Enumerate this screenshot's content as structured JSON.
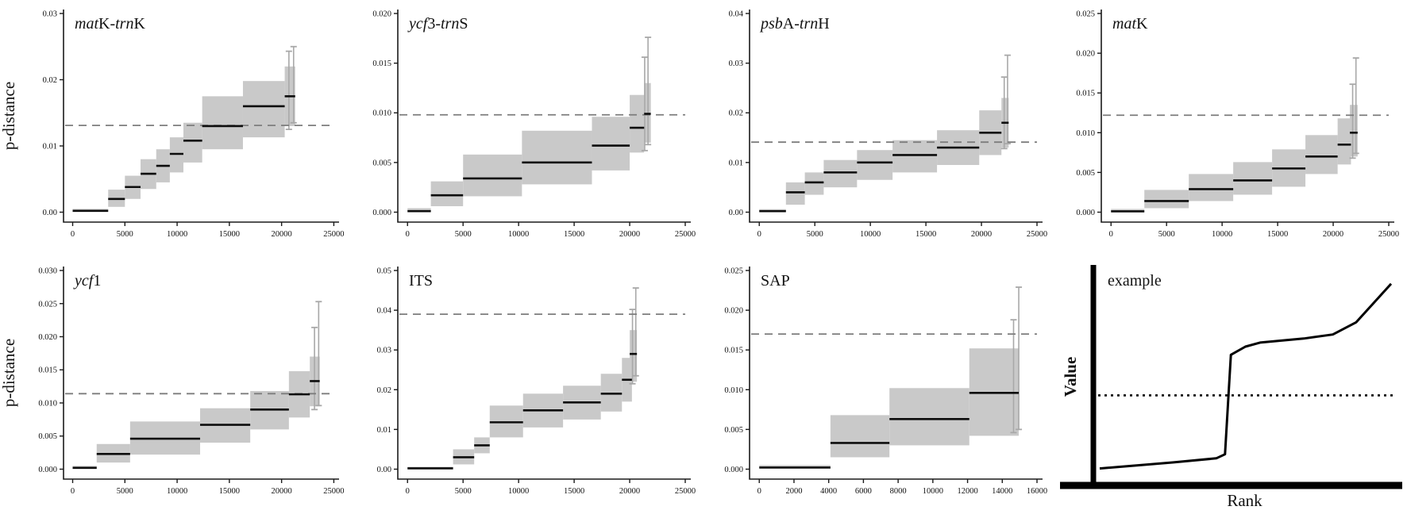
{
  "figure": {
    "ylabel": "p-distance",
    "colors": {
      "box": "#c9c9c9",
      "whisker": "#a8a8a8",
      "median": "#0d0d0d",
      "threshold": "#7d7d7d",
      "axis": "#1a1a1a"
    }
  },
  "chart_data": [
    {
      "type": "step-box",
      "title_parts": [
        [
          "mat",
          true
        ],
        [
          "K-",
          false
        ],
        [
          "trn",
          true
        ],
        [
          "K",
          false
        ]
      ],
      "ylabel": "p-distance",
      "xlim": [
        0,
        25000
      ],
      "xticks": [
        0,
        5000,
        10000,
        15000,
        20000,
        25000
      ],
      "ylim": [
        0,
        0.03
      ],
      "yticks": [
        0,
        0.01,
        0.02,
        0.03
      ],
      "ydecimals": 2,
      "threshold_y": 0.0131,
      "steps": [
        [
          0,
          3400,
          0.0002,
          0.0001,
          0.0005
        ],
        [
          3400,
          5000,
          0.002,
          0.0008,
          0.0034
        ],
        [
          5000,
          6500,
          0.0038,
          0.002,
          0.0055
        ],
        [
          6500,
          8000,
          0.0058,
          0.0035,
          0.008
        ],
        [
          8000,
          9300,
          0.007,
          0.0045,
          0.0095
        ],
        [
          9300,
          10600,
          0.0088,
          0.006,
          0.0113
        ],
        [
          10600,
          12400,
          0.0108,
          0.0075,
          0.0135
        ],
        [
          12400,
          16300,
          0.013,
          0.0095,
          0.0175
        ],
        [
          16300,
          20300,
          0.016,
          0.0113,
          0.0198
        ],
        [
          20300,
          21300,
          0.0175,
          0.013,
          0.022
        ]
      ],
      "whiskers": [
        [
          20700,
          0.0125,
          0.0243
        ],
        [
          21150,
          0.0135,
          0.025
        ]
      ]
    },
    {
      "type": "step-box",
      "title_parts": [
        [
          "ycf",
          true
        ],
        [
          "3-",
          false
        ],
        [
          "trn",
          true
        ],
        [
          "S",
          false
        ]
      ],
      "xlim": [
        0,
        25000
      ],
      "xticks": [
        0,
        5000,
        10000,
        15000,
        20000,
        25000
      ],
      "ylim": [
        0,
        0.02
      ],
      "yticks": [
        0,
        0.005,
        0.01,
        0.015,
        0.02
      ],
      "ydecimals": 3,
      "threshold_y": 0.0098,
      "steps": [
        [
          0,
          2100,
          0.0001,
          5e-05,
          0.0004
        ],
        [
          2100,
          5000,
          0.0017,
          0.0006,
          0.0031
        ],
        [
          5000,
          10300,
          0.0034,
          0.0016,
          0.0058
        ],
        [
          10300,
          16600,
          0.005,
          0.0028,
          0.0082
        ],
        [
          16600,
          20000,
          0.0067,
          0.0042,
          0.0096
        ],
        [
          20000,
          21300,
          0.0085,
          0.006,
          0.0118
        ],
        [
          21300,
          21900,
          0.0099,
          0.007,
          0.013
        ]
      ],
      "whiskers": [
        [
          21350,
          0.0062,
          0.0156
        ],
        [
          21650,
          0.0068,
          0.0176
        ]
      ]
    },
    {
      "type": "step-box",
      "title_parts": [
        [
          "psb",
          true
        ],
        [
          "A-",
          false
        ],
        [
          "trn",
          true
        ],
        [
          "H",
          false
        ]
      ],
      "xlim": [
        0,
        25000
      ],
      "xticks": [
        0,
        5000,
        10000,
        15000,
        20000,
        25000
      ],
      "ylim": [
        0,
        0.04
      ],
      "yticks": [
        0,
        0.01,
        0.02,
        0.03,
        0.04
      ],
      "ydecimals": 2,
      "threshold_y": 0.0141,
      "steps": [
        [
          0,
          2400,
          0.0002,
          0.0001,
          0.0006
        ],
        [
          2400,
          4100,
          0.004,
          0.0015,
          0.006
        ],
        [
          4100,
          5800,
          0.006,
          0.0035,
          0.008
        ],
        [
          5800,
          8800,
          0.008,
          0.005,
          0.0105
        ],
        [
          8800,
          12000,
          0.01,
          0.0065,
          0.0125
        ],
        [
          12000,
          16000,
          0.0115,
          0.008,
          0.0145
        ],
        [
          16000,
          19800,
          0.013,
          0.0095,
          0.0165
        ],
        [
          19800,
          21800,
          0.016,
          0.0115,
          0.0205
        ],
        [
          21800,
          22450,
          0.018,
          0.013,
          0.023
        ]
      ],
      "whiskers": [
        [
          22050,
          0.0128,
          0.0272
        ],
        [
          22350,
          0.0138,
          0.0316
        ]
      ]
    },
    {
      "type": "step-box",
      "title_parts": [
        [
          "mat",
          true
        ],
        [
          "K",
          false
        ]
      ],
      "xlim": [
        0,
        25000
      ],
      "xticks": [
        0,
        5000,
        10000,
        15000,
        20000,
        25000
      ],
      "ylim": [
        0,
        0.025
      ],
      "yticks": [
        0,
        0.005,
        0.01,
        0.015,
        0.02,
        0.025
      ],
      "ydecimals": 3,
      "threshold_y": 0.0122,
      "steps": [
        [
          0,
          3000,
          0.0001,
          5e-05,
          0.0004
        ],
        [
          3000,
          7000,
          0.0014,
          0.0005,
          0.0028
        ],
        [
          7000,
          11000,
          0.0029,
          0.0014,
          0.0048
        ],
        [
          11000,
          14500,
          0.004,
          0.0022,
          0.0063
        ],
        [
          14500,
          17500,
          0.0055,
          0.0032,
          0.0079
        ],
        [
          17500,
          20400,
          0.007,
          0.0048,
          0.0097
        ],
        [
          20400,
          21600,
          0.0085,
          0.006,
          0.0118
        ],
        [
          21500,
          22200,
          0.01,
          0.007,
          0.0135
        ]
      ],
      "whiskers": [
        [
          21750,
          0.0068,
          0.0161
        ],
        [
          22050,
          0.0074,
          0.0194
        ]
      ]
    },
    {
      "type": "step-box",
      "title_parts": [
        [
          "ycf",
          true
        ],
        [
          "1",
          false
        ]
      ],
      "ylabel": "p-distance",
      "xlim": [
        0,
        25000
      ],
      "xticks": [
        0,
        5000,
        10000,
        15000,
        20000,
        25000
      ],
      "ylim": [
        0,
        0.03
      ],
      "yticks": [
        0,
        0.005,
        0.01,
        0.015,
        0.02,
        0.025,
        0.03
      ],
      "ydecimals": 3,
      "threshold_y": 0.0114,
      "steps": [
        [
          0,
          2300,
          0.0002,
          0.0001,
          0.0005
        ],
        [
          2300,
          5500,
          0.0023,
          0.001,
          0.0038
        ],
        [
          5500,
          12200,
          0.0046,
          0.0022,
          0.0072
        ],
        [
          12200,
          17000,
          0.0067,
          0.004,
          0.0092
        ],
        [
          17000,
          20700,
          0.009,
          0.006,
          0.0118
        ],
        [
          20700,
          22700,
          0.0113,
          0.0078,
          0.0148
        ],
        [
          22700,
          23650,
          0.0133,
          0.0095,
          0.017
        ]
      ],
      "whiskers": [
        [
          23150,
          0.009,
          0.0214
        ],
        [
          23550,
          0.0096,
          0.0253
        ]
      ]
    },
    {
      "type": "step-box",
      "title_parts": [
        [
          "ITS",
          false
        ]
      ],
      "xlim": [
        0,
        25000
      ],
      "xticks": [
        0,
        5000,
        10000,
        15000,
        20000,
        25000
      ],
      "ylim": [
        0,
        0.05
      ],
      "yticks": [
        0,
        0.01,
        0.02,
        0.03,
        0.04,
        0.05
      ],
      "ydecimals": 2,
      "threshold_y": 0.039,
      "steps": [
        [
          0,
          4100,
          0.0002,
          0.0001,
          0.0006
        ],
        [
          4100,
          6000,
          0.003,
          0.0012,
          0.005
        ],
        [
          6000,
          7400,
          0.006,
          0.004,
          0.008
        ],
        [
          7400,
          10400,
          0.0118,
          0.008,
          0.016
        ],
        [
          10400,
          14000,
          0.0148,
          0.0105,
          0.019
        ],
        [
          14000,
          17400,
          0.0168,
          0.0125,
          0.021
        ],
        [
          17400,
          19300,
          0.019,
          0.0145,
          0.024
        ],
        [
          19300,
          20200,
          0.0225,
          0.017,
          0.028
        ],
        [
          20000,
          20650,
          0.029,
          0.022,
          0.035
        ]
      ],
      "whiskers": [
        [
          20250,
          0.0215,
          0.0402
        ],
        [
          20550,
          0.0235,
          0.0456
        ]
      ]
    },
    {
      "type": "step-box",
      "title_parts": [
        [
          "SAP",
          false
        ]
      ],
      "xlim": [
        0,
        16000
      ],
      "xticks": [
        0,
        2000,
        4000,
        6000,
        8000,
        10000,
        12000,
        14000,
        16000
      ],
      "ylim": [
        0,
        0.025
      ],
      "yticks": [
        0,
        0.005,
        0.01,
        0.015,
        0.02,
        0.025
      ],
      "ydecimals": 3,
      "threshold_y": 0.017,
      "steps": [
        [
          0,
          4100,
          0.0002,
          0.0001,
          0.0005
        ],
        [
          4100,
          7500,
          0.0033,
          0.0015,
          0.0068
        ],
        [
          7500,
          12100,
          0.0063,
          0.003,
          0.0102
        ],
        [
          12100,
          14950,
          0.0096,
          0.0042,
          0.0152
        ]
      ],
      "whiskers": [
        [
          14650,
          0.0046,
          0.0188
        ],
        [
          14950,
          0.005,
          0.0229
        ]
      ]
    },
    {
      "type": "schematic",
      "title": "example",
      "ylabel": "Value",
      "xlabel": "Rank",
      "threshold_y": 0.42,
      "curve": [
        [
          0.0,
          0.06
        ],
        [
          0.25,
          0.09
        ],
        [
          0.4,
          0.11
        ],
        [
          0.43,
          0.13
        ],
        [
          0.45,
          0.62
        ],
        [
          0.5,
          0.66
        ],
        [
          0.55,
          0.68
        ],
        [
          0.7,
          0.7
        ],
        [
          0.8,
          0.72
        ],
        [
          0.88,
          0.78
        ],
        [
          1.0,
          0.97
        ]
      ]
    }
  ]
}
